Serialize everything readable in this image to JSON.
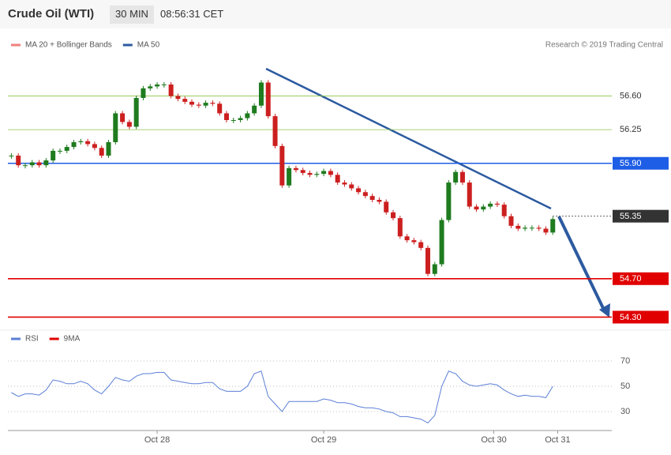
{
  "chart_data": {
    "type": "candlestick",
    "title": "Crude Oil (WTI)",
    "interval": "30 MIN",
    "time": "08:56:31 CET",
    "credit": "Research © 2019 Trading Central",
    "legend": [
      {
        "name": "MA 20 + Bollinger Bands",
        "color": "#f08080"
      },
      {
        "name": "MA 50",
        "color": "#2c5aa0"
      }
    ],
    "x": [
      0,
      1,
      2,
      3,
      4,
      5,
      6,
      7,
      8,
      9,
      10,
      11,
      12,
      13,
      14,
      15,
      16,
      17,
      18,
      19,
      20,
      21,
      22,
      23,
      24,
      25,
      26,
      27,
      28,
      29,
      30,
      31,
      32,
      33,
      34,
      35,
      36,
      37,
      38,
      39,
      40,
      41,
      42,
      43,
      44,
      45,
      46,
      47,
      48,
      49,
      50,
      51,
      52,
      53,
      54,
      55,
      56,
      57,
      58,
      59,
      60,
      61,
      62,
      63,
      64,
      65,
      66,
      67,
      68,
      69,
      70,
      71,
      72,
      73,
      74,
      75,
      76,
      77,
      78
    ],
    "close": [
      55.98,
      55.88,
      55.88,
      55.91,
      55.88,
      55.93,
      56.03,
      56.03,
      56.07,
      56.12,
      56.13,
      56.1,
      56.06,
      55.98,
      56.12,
      56.42,
      56.33,
      56.28,
      56.58,
      56.68,
      56.7,
      56.72,
      56.72,
      56.6,
      56.57,
      56.54,
      56.51,
      56.5,
      56.53,
      56.52,
      56.42,
      56.35,
      56.35,
      56.37,
      56.42,
      56.5,
      56.74,
      56.39,
      56.08,
      55.67,
      55.85,
      55.83,
      55.8,
      55.78,
      55.79,
      55.82,
      55.78,
      55.7,
      55.68,
      55.64,
      55.6,
      55.56,
      55.52,
      55.5,
      55.39,
      55.33,
      55.14,
      55.1,
      55.08,
      55.02,
      54.75,
      54.85,
      55.31,
      55.7,
      55.81,
      55.7,
      55.45,
      55.42,
      55.45,
      55.48,
      55.47,
      55.35,
      55.25,
      55.22,
      55.23,
      55.23,
      55.22,
      55.18,
      55.32
    ],
    "up_color": "#1e7b1e",
    "down_color": "#cc1f1f",
    "xlim": [
      -0.5,
      86.5
    ],
    "xticks": [
      {
        "value": 21,
        "label": "Oct 28"
      },
      {
        "value": 45,
        "label": "Oct 29"
      },
      {
        "value": 69.5,
        "label": "Oct 30"
      },
      {
        "value": 78.7,
        "label": "Oct 31"
      }
    ],
    "ylim": [
      54.23,
      57.27
    ],
    "levels": [
      {
        "value": 56.6,
        "label": "56.60",
        "color": "#8bc34a",
        "style": "text"
      },
      {
        "value": 56.25,
        "label": "56.25",
        "color": "#8bc34a",
        "style": "text"
      },
      {
        "value": 55.9,
        "label": "55.90",
        "color": "#1e5ee6",
        "style": "box"
      },
      {
        "value": 55.35,
        "label": "55.35",
        "color": "#333333",
        "style": "dotted"
      },
      {
        "value": 54.7,
        "label": "54.70",
        "color": "#e00000",
        "style": "box"
      },
      {
        "value": 54.3,
        "label": "54.30",
        "color": "#e00000",
        "style": "box"
      }
    ],
    "rsi": {
      "legend": [
        {
          "name": "RSI",
          "color": "#5b7fd6"
        },
        {
          "name": "9MA",
          "color": "#e00000"
        }
      ],
      "values": [
        45,
        42,
        44,
        44,
        43,
        47,
        55,
        54,
        52,
        52,
        54,
        52,
        47,
        44,
        50,
        57,
        55,
        54,
        58,
        60,
        60,
        61,
        61,
        55,
        54,
        53,
        52,
        52,
        53,
        53,
        48,
        46,
        46,
        46,
        50,
        60,
        62,
        42,
        36,
        30,
        38,
        38,
        38,
        38,
        38,
        40,
        39,
        37,
        37,
        36,
        34,
        33,
        33,
        32,
        30,
        29,
        26,
        26,
        25,
        24,
        21,
        27,
        50,
        62,
        60,
        54,
        51,
        50,
        51,
        52,
        51,
        47,
        44,
        42,
        43,
        42,
        42,
        41,
        50
      ],
      "ylim": [
        18.1,
        80.6
      ],
      "yticks": [
        30,
        50,
        70
      ]
    }
  }
}
